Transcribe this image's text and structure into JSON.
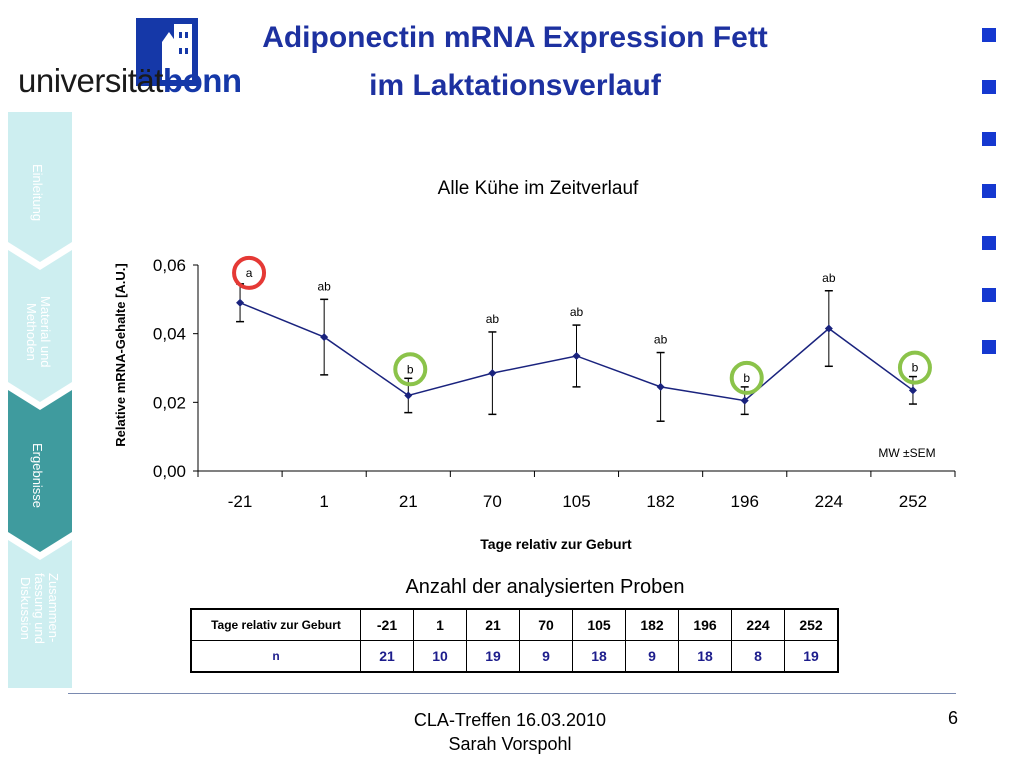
{
  "logo": {
    "text_light": "universität",
    "text_bold": "bonn",
    "emblem_icon": "university-emblem-icon"
  },
  "header": {
    "title_line1": "Adiponectin mRNA Expression Fett",
    "title_line2": "im Laktationsverlauf"
  },
  "sidebar": {
    "items": [
      {
        "label": "Einleitung",
        "state": "inactive"
      },
      {
        "label": "Material und Methoden",
        "state": "inactive"
      },
      {
        "label": "Ergebnisse",
        "state": "active"
      },
      {
        "label": "Zusammen-fassung und Diskussion",
        "state": "inactive"
      }
    ]
  },
  "chart_data": {
    "type": "line",
    "title": "Alle Kühe im Zeitverlauf",
    "xlabel": "Tage relativ zur Geburt",
    "ylabel": "Relative mRNA-Gehalte [A.U.]",
    "categories": [
      "-21",
      "1",
      "21",
      "70",
      "105",
      "182",
      "196",
      "224",
      "252"
    ],
    "series": [
      {
        "values": [
          0.049,
          0.039,
          0.022,
          0.0285,
          0.0335,
          0.0245,
          0.0205,
          0.0415,
          0.0235
        ],
        "errors": [
          0.0055,
          0.011,
          0.005,
          0.012,
          0.009,
          0.01,
          0.004,
          0.011,
          0.004
        ],
        "letters": [
          "a",
          "ab",
          "b",
          "ab",
          "ab",
          "ab",
          "b",
          "ab",
          "b"
        ],
        "color": "#1a237e"
      }
    ],
    "ylim": [
      0,
      0.06
    ],
    "yticks": [
      "0,00",
      "0,02",
      "0,04",
      "0,06"
    ],
    "grid": false,
    "annotation": "MW ±SEM",
    "highlight_colors": {
      "a": "#e53935",
      "b": "#8bc34a"
    }
  },
  "table": {
    "caption": "Anzahl der analysierten Proben",
    "row1_label": "Tage relativ zur Geburt",
    "row2_label": "n",
    "days": [
      "-21",
      "1",
      "21",
      "70",
      "105",
      "182",
      "196",
      "224",
      "252"
    ],
    "n": [
      "21",
      "10",
      "19",
      "9",
      "18",
      "9",
      "18",
      "8",
      "19"
    ]
  },
  "footer": {
    "line1": "CLA-Treffen 16.03.2010",
    "line2": "Sarah Vorspohl",
    "page": "6"
  }
}
